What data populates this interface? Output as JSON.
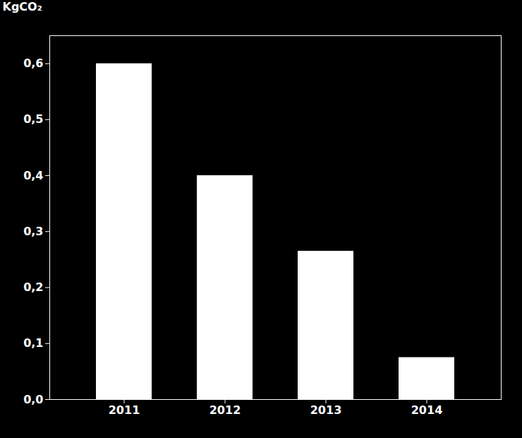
{
  "chart_data": {
    "type": "bar",
    "ylabel": "KgCO₂",
    "categories": [
      "2011",
      "2012",
      "2013",
      "2014"
    ],
    "values": [
      0.6,
      0.4,
      0.265,
      0.075
    ],
    "color": "#ffffff",
    "ylim": [
      0,
      0.65
    ],
    "yticks": [
      {
        "value": 0.0,
        "label": "0,0"
      },
      {
        "value": 0.1,
        "label": "0,1"
      },
      {
        "value": 0.2,
        "label": "0,2"
      },
      {
        "value": 0.3,
        "label": "0,3"
      },
      {
        "value": 0.4,
        "label": "0,4"
      },
      {
        "value": 0.5,
        "label": "0,5"
      },
      {
        "value": 0.6,
        "label": "0,6"
      }
    ],
    "grid": false
  }
}
